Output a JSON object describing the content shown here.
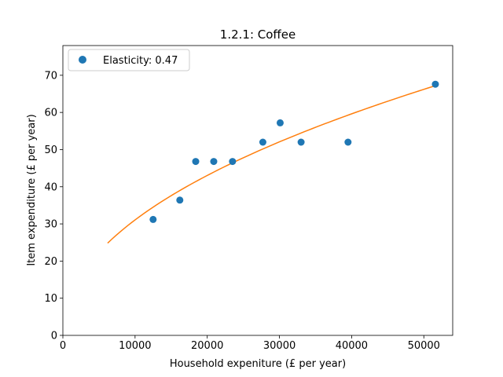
{
  "chart_data": {
    "type": "scatter",
    "title": "1.2.1: Coffee",
    "xlabel": "Household expeniture (£ per year)",
    "ylabel": "Item expenditure (£ per year)",
    "xlim": [
      0,
      54000
    ],
    "ylim": [
      0,
      78
    ],
    "xticks": [
      0,
      10000,
      20000,
      30000,
      40000,
      50000
    ],
    "yticks": [
      0,
      10,
      20,
      30,
      40,
      50,
      60,
      70
    ],
    "grid": false,
    "legend_position": "top-left",
    "series": [
      {
        "name": "Elasticity: 0.47",
        "type": "scatter",
        "color": "#1f77b4",
        "points": [
          {
            "x": 12500,
            "y": 31.2
          },
          {
            "x": 16200,
            "y": 36.4
          },
          {
            "x": 18400,
            "y": 46.8
          },
          {
            "x": 20900,
            "y": 46.8
          },
          {
            "x": 23500,
            "y": 46.8
          },
          {
            "x": 27700,
            "y": 52.0
          },
          {
            "x": 30100,
            "y": 57.2
          },
          {
            "x": 33000,
            "y": 52.0
          },
          {
            "x": 39500,
            "y": 52.0
          },
          {
            "x": 51600,
            "y": 67.6
          }
        ]
      },
      {
        "type": "line",
        "color": "#ff7f0e",
        "fit": {
          "form": "power",
          "elasticity": 0.47,
          "x_at": 51600,
          "y_at": 67.2
        },
        "x_range": [
          6200,
          51600
        ]
      }
    ]
  }
}
